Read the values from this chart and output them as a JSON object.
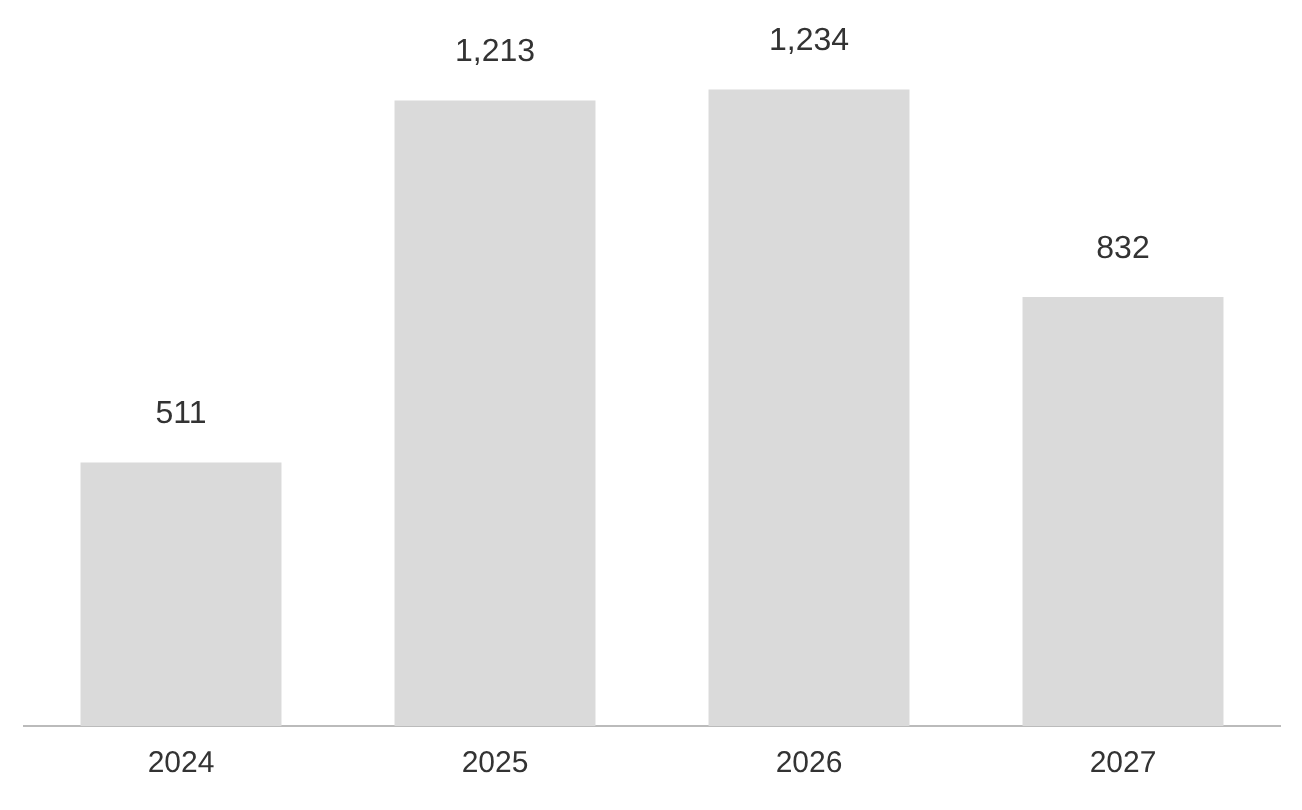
{
  "chart_data": {
    "type": "bar",
    "categories": [
      "2024",
      "2025",
      "2026",
      "2027"
    ],
    "values": [
      511,
      1213,
      1234,
      832
    ],
    "value_labels": [
      "511",
      "1,213",
      "1,234",
      "832"
    ],
    "color": "#dadada",
    "grid": false,
    "legend": false
  }
}
